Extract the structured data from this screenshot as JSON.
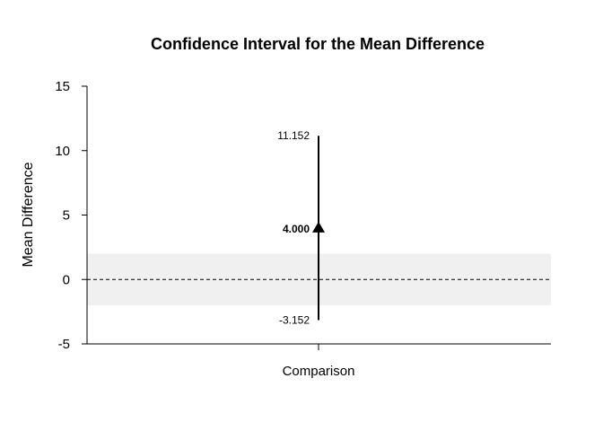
{
  "chart_data": {
    "type": "scatter",
    "title": "Confidence Interval for the Mean Difference",
    "xlabel": "",
    "ylabel": "Mean Difference",
    "categories": [
      "Comparison"
    ],
    "ylim": [
      -5,
      15
    ],
    "yticks": [
      "-5",
      "0",
      "5",
      "10",
      "15"
    ],
    "estimate": 4.0,
    "lower": -3.152,
    "upper": 11.152,
    "estimate_label": "4.000",
    "lower_label": "-3.152",
    "upper_label": "11.152",
    "reference_line": 0,
    "equivalence_band": [
      -2,
      2
    ],
    "grid": false,
    "colors": {
      "band": "#f0f0f0",
      "line": "#000000"
    }
  }
}
